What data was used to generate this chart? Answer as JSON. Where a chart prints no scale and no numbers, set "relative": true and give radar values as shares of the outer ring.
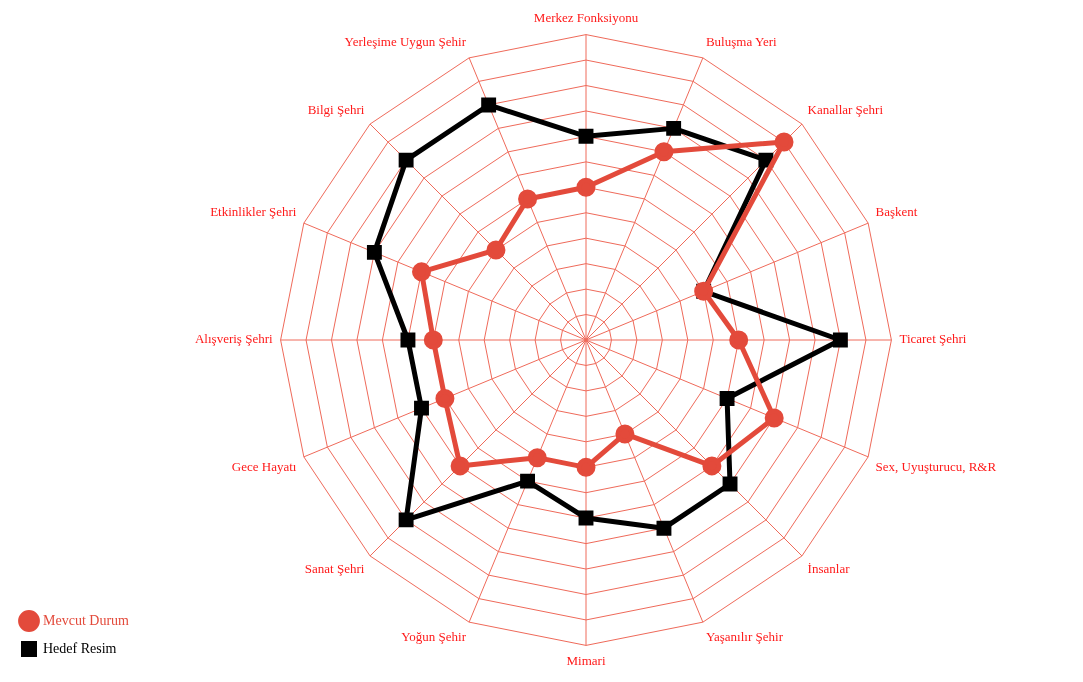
{
  "chart_data": {
    "type": "radar",
    "relative": true,
    "grid": true,
    "legend": "bottom left",
    "categories": [
      "Merkez Fonksiyonu",
      "Buluşma Yeri",
      "Kanallar Şehri",
      "Başkent",
      "Ticaret Şehri",
      "Sex, Uyuşturucu, R&R",
      "İnsanlar",
      "Yaşanılır Şehir",
      "Mimari",
      "Yoğun Şehir",
      "Sanat Şehri",
      "Gece Hayatı",
      "Alışveriş Şehri",
      "Etkinlikler Şehri",
      "Bilgi Şehri",
      "Yerleşime Uygun Şehir"
    ],
    "series": [
      {
        "name": "Mevcut Durum",
        "color": "#e34a3b",
        "marker": "circle",
        "values": [
          0.5,
          0.667,
          0.917,
          0.417,
          0.5,
          0.667,
          0.583,
          0.333,
          0.417,
          0.417,
          0.583,
          0.5,
          0.5,
          0.583,
          0.417,
          0.5
        ]
      },
      {
        "name": "Hedef Resim",
        "color": "#000000",
        "marker": "square",
        "values": [
          0.667,
          0.75,
          0.833,
          0.417,
          0.833,
          0.5,
          0.667,
          0.667,
          0.583,
          0.5,
          0.833,
          0.583,
          0.583,
          0.75,
          0.833,
          0.833
        ]
      }
    ]
  }
}
